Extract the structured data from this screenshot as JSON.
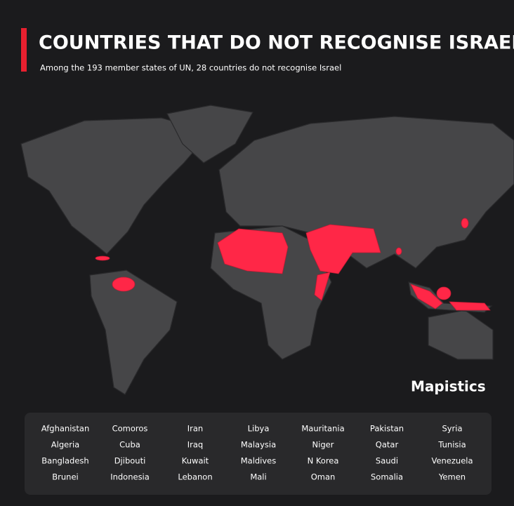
{
  "header": {
    "title": "COUNTRIES THAT DO NOT RECOGNISE ISRAEL",
    "subtitle": "Among the 193 member states of UN, 28 countries do not recognise Israel"
  },
  "brand": "Mapistics",
  "countries": [
    "Afghanistan",
    "Algeria",
    "Bangladesh",
    "Brunei",
    "Comoros",
    "Cuba",
    "Djibouti",
    "Indonesia",
    "Iran",
    "Iraq",
    "Kuwait",
    "Lebanon",
    "Libya",
    "Malaysia",
    "Maldives",
    "Mali",
    "Mauritania",
    "Niger",
    "N Korea",
    "Oman",
    "Pakistan",
    "Qatar",
    "Saudi",
    "Somalia",
    "Syria",
    "Tunisia",
    "Venezuela",
    "Yemen"
  ]
}
